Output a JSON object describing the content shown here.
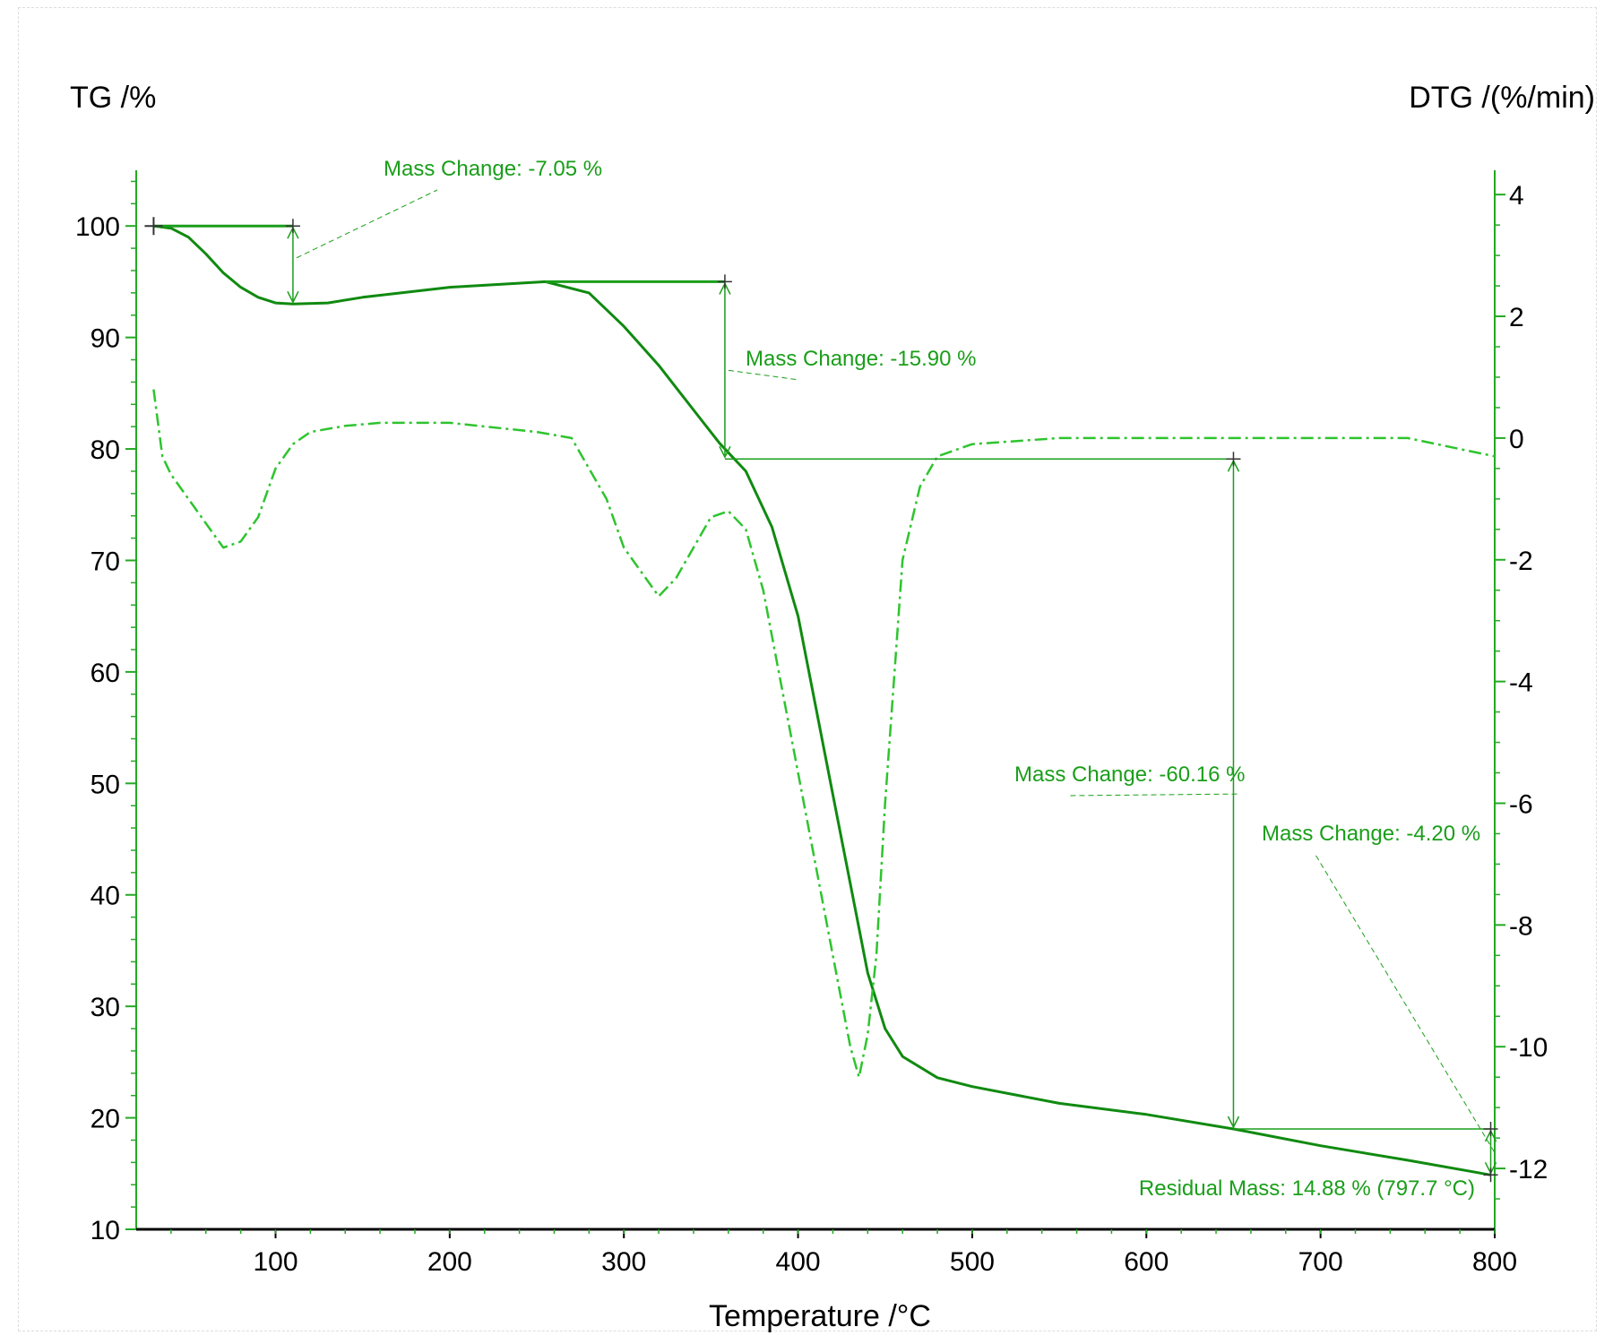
{
  "chart_data": {
    "type": "line",
    "xlabel": "Temperature /°C",
    "ylabel_left": "TG /%",
    "ylabel_right": "DTG /(%/min)",
    "xlim": [
      20,
      800
    ],
    "ylim_left": [
      10,
      105
    ],
    "ylim_right": [
      -13,
      4.4
    ],
    "x_ticks": [
      100,
      200,
      300,
      400,
      500,
      600,
      700,
      800
    ],
    "y_left_ticks": [
      10,
      20,
      30,
      40,
      50,
      60,
      70,
      80,
      90,
      100
    ],
    "y_right_ticks": [
      4,
      2,
      0,
      -2,
      -4,
      -6,
      -8,
      -10,
      -12
    ],
    "colors": {
      "tg": "#108a10",
      "dtg": "#2ec42e",
      "annotation": "#1a9e1a",
      "axis": "#22aa22"
    },
    "series": [
      {
        "axis": "left",
        "style": "solid",
        "points": [
          [
            30,
            100
          ],
          [
            40,
            99.8
          ],
          [
            50,
            99
          ],
          [
            60,
            97.5
          ],
          [
            70,
            95.8
          ],
          [
            80,
            94.5
          ],
          [
            90,
            93.6
          ],
          [
            100,
            93.1
          ],
          [
            110,
            93
          ],
          [
            130,
            93.1
          ],
          [
            150,
            93.6
          ],
          [
            200,
            94.5
          ],
          [
            255,
            95
          ],
          [
            280,
            94
          ],
          [
            300,
            91
          ],
          [
            320,
            87.5
          ],
          [
            340,
            83.5
          ],
          [
            355,
            80.5
          ],
          [
            370,
            78
          ],
          [
            385,
            73
          ],
          [
            400,
            65
          ],
          [
            410,
            57
          ],
          [
            420,
            49
          ],
          [
            430,
            41
          ],
          [
            440,
            33
          ],
          [
            450,
            28
          ],
          [
            460,
            25.5
          ],
          [
            480,
            23.6
          ],
          [
            500,
            22.8
          ],
          [
            550,
            21.3
          ],
          [
            600,
            20.3
          ],
          [
            650,
            19
          ],
          [
            700,
            17.5
          ],
          [
            750,
            16.2
          ],
          [
            797.7,
            14.88
          ]
        ]
      },
      {
        "axis": "right",
        "style": "dashdot",
        "points": [
          [
            30,
            0.8
          ],
          [
            35,
            -0.3
          ],
          [
            40,
            -0.6
          ],
          [
            50,
            -1
          ],
          [
            60,
            -1.4
          ],
          [
            70,
            -1.8
          ],
          [
            80,
            -1.7
          ],
          [
            90,
            -1.3
          ],
          [
            100,
            -0.5
          ],
          [
            110,
            -0.1
          ],
          [
            120,
            0.1
          ],
          [
            140,
            0.2
          ],
          [
            160,
            0.25
          ],
          [
            200,
            0.25
          ],
          [
            250,
            0.1
          ],
          [
            270,
            0
          ],
          [
            280,
            -0.5
          ],
          [
            290,
            -1
          ],
          [
            300,
            -1.8
          ],
          [
            310,
            -2.2
          ],
          [
            320,
            -2.6
          ],
          [
            330,
            -2.3
          ],
          [
            340,
            -1.8
          ],
          [
            350,
            -1.3
          ],
          [
            360,
            -1.2
          ],
          [
            370,
            -1.5
          ],
          [
            380,
            -2.5
          ],
          [
            390,
            -4
          ],
          [
            400,
            -5.5
          ],
          [
            410,
            -7
          ],
          [
            420,
            -8.5
          ],
          [
            430,
            -10
          ],
          [
            435,
            -10.5
          ],
          [
            440,
            -9.8
          ],
          [
            445,
            -8.5
          ],
          [
            450,
            -6
          ],
          [
            455,
            -4
          ],
          [
            460,
            -2
          ],
          [
            470,
            -0.8
          ],
          [
            480,
            -0.3
          ],
          [
            500,
            -0.1
          ],
          [
            550,
            0
          ],
          [
            600,
            0
          ],
          [
            650,
            0
          ],
          [
            700,
            0
          ],
          [
            750,
            0
          ],
          [
            800,
            -0.3
          ]
        ]
      }
    ],
    "annotations": [
      {
        "label": "Mass Change: -7.05 %",
        "from": [
          110,
          100
        ],
        "to": [
          110,
          93
        ]
      },
      {
        "label": "Mass Change: -15.90 %",
        "from": [
          358,
          95
        ],
        "to": [
          358,
          79.1
        ]
      },
      {
        "label": "Mass Change: -60.16 %",
        "from": [
          650,
          79.1
        ],
        "to": [
          650,
          19
        ]
      },
      {
        "label": "Mass Change: -4.20 %",
        "from": [
          797.7,
          19
        ],
        "to": [
          797.7,
          14.88
        ]
      },
      {
        "label": "Residual Mass: 14.88 % (797.7 °C)",
        "at": [
          797.7,
          14.88
        ]
      }
    ]
  }
}
